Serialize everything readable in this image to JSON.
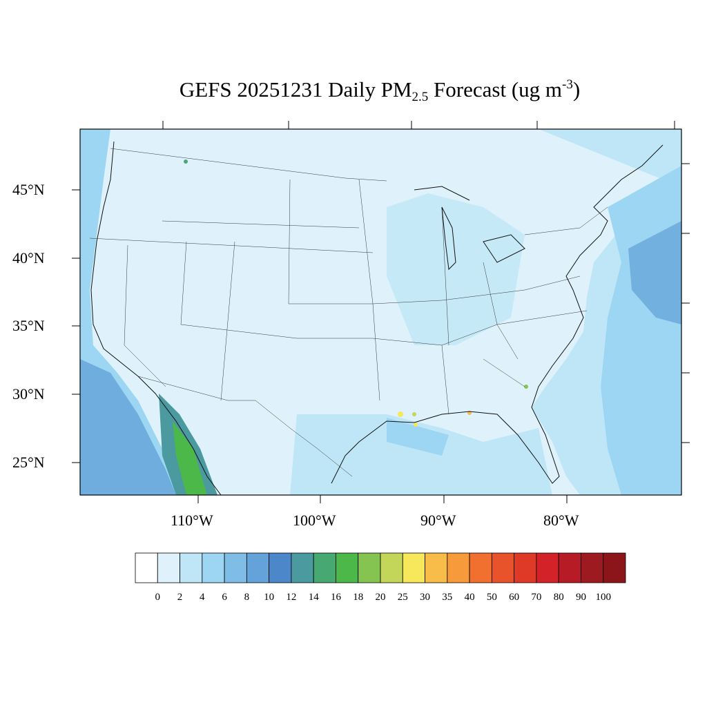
{
  "title": {
    "prefix": "GEFS 20251231 Daily PM",
    "subscript": "2.5",
    "middle": " Forecast (ug m",
    "superscript": "-3",
    "suffix": ")"
  },
  "map": {
    "lat_ticks": [
      "45°N",
      "40°N",
      "35°N",
      "30°N",
      "25°N"
    ],
    "lon_ticks": [
      "110°W",
      "100°W",
      "90°W",
      "80°W"
    ],
    "background_color": "#dff2fb",
    "ocean_color": "#9dd3f0"
  },
  "colorbar": {
    "labels": [
      "0",
      "2",
      "4",
      "6",
      "8",
      "10",
      "12",
      "14",
      "16",
      "18",
      "20",
      "25",
      "30",
      "35",
      "40",
      "50",
      "60",
      "70",
      "80",
      "90",
      "100"
    ],
    "colors": [
      "#ffffff",
      "#dff2fb",
      "#bfe6f7",
      "#9dd6f3",
      "#7fbde6",
      "#64a3da",
      "#4b87c9",
      "#4b9aa0",
      "#48a871",
      "#4db84a",
      "#86c452",
      "#c4d65a",
      "#f7e75a",
      "#f7bd48",
      "#f69a3b",
      "#f2702f",
      "#e9532c",
      "#df3a28",
      "#d42229",
      "#b71c26",
      "#9c1a20",
      "#8b1518"
    ]
  }
}
